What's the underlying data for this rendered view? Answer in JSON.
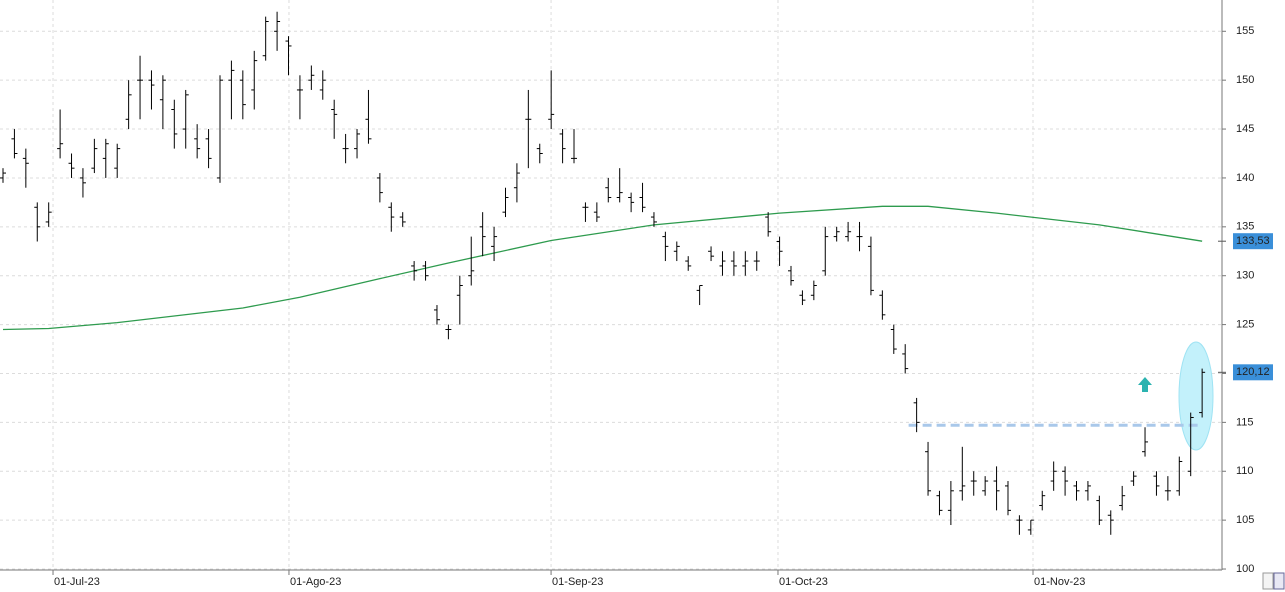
{
  "chart_data": {
    "type": "ohlc",
    "xlim": [
      -0.263,
      106.74
    ],
    "ylim": [
      99.9,
      158.2
    ],
    "yticks": [
      100,
      105,
      110,
      115,
      120,
      125,
      130,
      135,
      140,
      145,
      150,
      155
    ],
    "xticks": [
      {
        "value": 4.38,
        "label": "01-Jul-23"
      },
      {
        "value": 25.04,
        "label": "01-Ago-23"
      },
      {
        "value": 47.99,
        "label": "01-Sep-23"
      },
      {
        "value": 67.86,
        "label": "01-Oct-23"
      },
      {
        "value": 90.19,
        "label": "01-Nov-23"
      }
    ],
    "grid": true,
    "ohlc": {
      "color": "#000000",
      "open": [
        140,
        144,
        142,
        137,
        135.5,
        143,
        141.5,
        140,
        141,
        142,
        141,
        146,
        150,
        150,
        148,
        147,
        145,
        144,
        144,
        140,
        150,
        150,
        149,
        152.5,
        155,
        154,
        149,
        150,
        149,
        147,
        143,
        143,
        146,
        140,
        137,
        136,
        131,
        131,
        126.5,
        124.5,
        128,
        130,
        135,
        133,
        136.5,
        139,
        146,
        143,
        146,
        144.5,
        142,
        137,
        136.5,
        139,
        138,
        138,
        138,
        136,
        134,
        132.5,
        131.5,
        128.5,
        132.5,
        131,
        131.5,
        131,
        131.5,
        136,
        133.5,
        130.5,
        128,
        128,
        130.5,
        134,
        134,
        134,
        133,
        128,
        124.5,
        122,
        117,
        112,
        107.5,
        106,
        108,
        109,
        108,
        109,
        108.5,
        105,
        104,
        106.5,
        109,
        110,
        108.5,
        108,
        107,
        105.5,
        106.5,
        109,
        112,
        109.5,
        108,
        108,
        110,
        116
      ],
      "high": [
        141,
        145,
        143,
        137.5,
        137.5,
        147,
        142.5,
        141,
        144,
        144,
        143.5,
        150,
        152.5,
        151,
        150.5,
        148,
        149,
        145.5,
        145,
        150.5,
        152,
        151,
        153,
        156.5,
        157,
        154.5,
        150.5,
        151.5,
        151,
        148,
        144.5,
        145,
        149,
        140.5,
        137.5,
        136.5,
        131.5,
        131.5,
        127,
        125,
        130,
        134,
        136.5,
        135,
        139,
        141.5,
        149,
        143.5,
        151,
        145,
        145,
        137.5,
        137.5,
        140,
        141,
        138.5,
        139.5,
        136.5,
        134.5,
        133.5,
        132,
        129,
        133,
        132.5,
        132.5,
        132.5,
        132.5,
        136.5,
        134,
        131,
        128.5,
        129.5,
        135,
        135,
        135.5,
        135.5,
        134,
        128.5,
        125,
        123,
        117.5,
        113,
        108,
        109,
        112.5,
        110,
        109.5,
        110.5,
        109,
        105.5,
        105,
        108,
        111,
        110.5,
        109,
        109,
        107.5,
        106,
        108.5,
        110,
        114.5,
        110,
        109.5,
        111.5,
        116,
        120.5
      ],
      "low": [
        139.5,
        142,
        139,
        133.5,
        135,
        142,
        140,
        138,
        140.5,
        140,
        140,
        145,
        146,
        147,
        145,
        143,
        143,
        142,
        141,
        139.5,
        146,
        146,
        147,
        152,
        153,
        150.5,
        146,
        149,
        148,
        144,
        141.5,
        142,
        143.5,
        137.5,
        134.5,
        135,
        129.5,
        129.5,
        125,
        123.5,
        125,
        129,
        132,
        131.5,
        136,
        137.5,
        141,
        141.5,
        145,
        141.5,
        141.5,
        135.5,
        135.5,
        137.5,
        137.5,
        136.5,
        136.5,
        135,
        131.5,
        131.5,
        130.5,
        127,
        131.5,
        130,
        130,
        130,
        130.5,
        134,
        131,
        129,
        127,
        127.5,
        130,
        133.5,
        133.5,
        132.5,
        128,
        125.5,
        122,
        120,
        114,
        107.5,
        105.5,
        104.5,
        107,
        107.5,
        107.5,
        106,
        105.5,
        103.5,
        103.5,
        106,
        108,
        107.5,
        107,
        107,
        104.5,
        103.5,
        106,
        108.5,
        111.5,
        107.5,
        107,
        107.5,
        109.5,
        115.5
      ],
      "close": [
        140.5,
        142.5,
        141.5,
        135,
        136.5,
        143.5,
        141,
        139.5,
        143,
        143.5,
        143,
        148.5,
        150,
        149.5,
        150,
        144.5,
        148.5,
        143,
        142,
        150,
        151,
        147.5,
        152,
        156,
        156,
        153.5,
        149,
        150.5,
        150,
        146.5,
        143,
        144.5,
        144,
        138.5,
        136,
        135.5,
        130.5,
        130,
        125.5,
        124.5,
        129,
        130.5,
        134,
        134,
        138,
        140.5,
        146,
        142.5,
        146.5,
        143,
        142,
        137,
        136,
        138,
        138.5,
        137.5,
        137,
        135.5,
        133,
        133,
        131,
        129,
        132,
        131.5,
        131,
        131.5,
        131.5,
        134.5,
        132.5,
        129.5,
        127.5,
        129,
        134,
        134.5,
        134.5,
        134,
        128.5,
        126,
        122.5,
        120.5,
        115,
        108,
        106,
        108,
        108.5,
        109,
        109,
        108,
        106,
        105,
        105,
        107.5,
        110,
        109,
        108,
        108.5,
        105,
        105,
        107.5,
        109.5,
        113,
        108.5,
        108,
        111,
        115.5,
        120.12
      ]
    },
    "line": {
      "color": "#2e9b4e",
      "x": [
        0,
        4,
        10,
        21,
        26,
        33,
        39,
        48,
        57,
        68,
        77,
        81,
        87,
        96,
        105
      ],
      "values": [
        124.5,
        124.6,
        125.2,
        126.7,
        127.8,
        129.7,
        131.3,
        133.6,
        135.2,
        136.4,
        137.1,
        137.1,
        136.4,
        135.2,
        133.53
      ]
    },
    "last_labels": [
      {
        "value": 133.53,
        "label": "133,53"
      },
      {
        "value": 120.12,
        "label": "120,12"
      }
    ],
    "level": {
      "value": 114.7,
      "from": 80,
      "to": 105,
      "color": "#a9c8ea"
    }
  }
}
